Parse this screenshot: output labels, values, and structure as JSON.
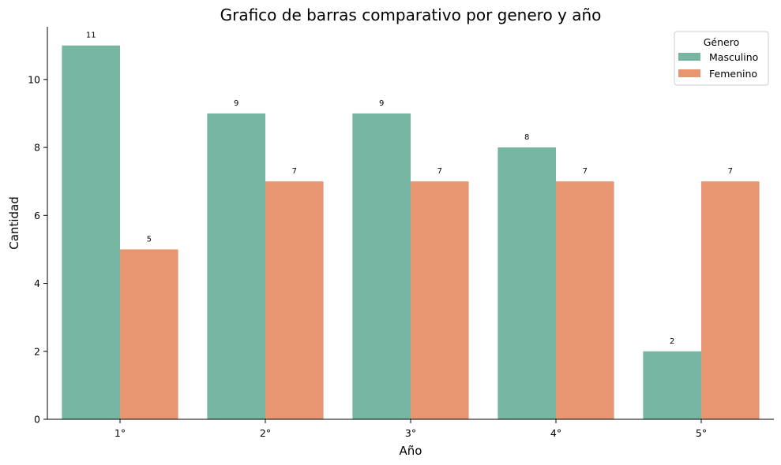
{
  "chart_data": {
    "type": "bar",
    "title": "Grafico de barras comparativo por genero y año",
    "xlabel": "Año",
    "ylabel": "Cantidad",
    "categories": [
      "1°",
      "2°",
      "3°",
      "4°",
      "5°"
    ],
    "series": [
      {
        "name": "Masculino",
        "values": [
          11,
          9,
          9,
          8,
          2
        ],
        "color": "#76b5a1"
      },
      {
        "name": "Femenino",
        "values": [
          5,
          7,
          7,
          7,
          7
        ],
        "color": "#e89672"
      }
    ],
    "ylim": [
      0,
      11.55
    ],
    "yticks": [
      0,
      2,
      4,
      6,
      8,
      10
    ],
    "legend": {
      "title": "Género",
      "position": "top-right"
    },
    "grid": false
  }
}
